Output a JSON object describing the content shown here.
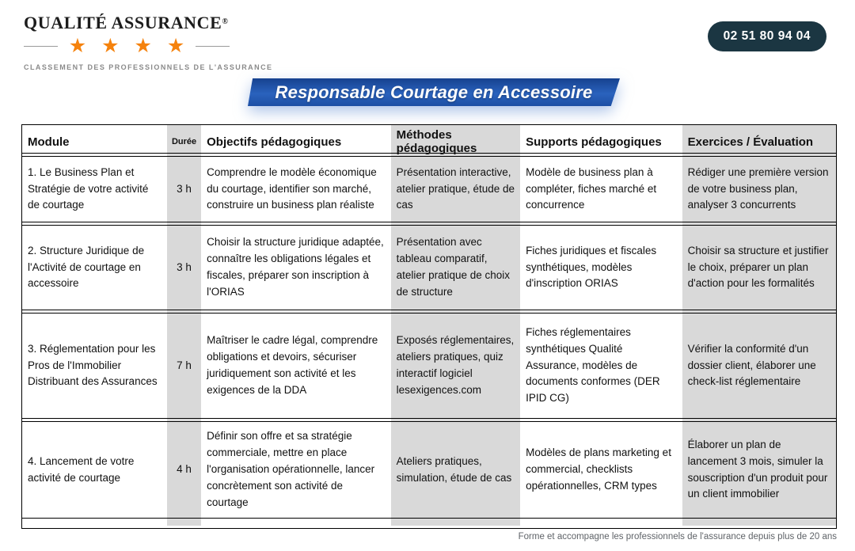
{
  "logo": {
    "title": "QUALITÉ ASSURANCE",
    "registered": "®",
    "stars": "★ ★ ★ ★",
    "tagline": "CLASSEMENT DES PROFESSIONNELS DE L'ASSURANCE"
  },
  "phone": "02 51 80 94 04",
  "banner": "Responsable Courtage en Accessoire",
  "table": {
    "headers": [
      "Module",
      "Durée",
      "Objectifs pédagogiques",
      "Méthodes pédagogiques",
      "Supports pédagogiques",
      "Exercices / Évaluation"
    ],
    "rows": [
      {
        "module": "1. Le Business Plan et Stratégie de votre activité de courtage",
        "duree": "3 h",
        "objectifs": "Comprendre le modèle économique du courtage, identifier son marché, construire un business plan réaliste",
        "methodes": "Présentation interactive, atelier pratique, étude de cas",
        "supports": "Modèle de business plan à compléter, fiches marché et concurrence",
        "exercices": "Rédiger une première version de votre business plan, analyser 3 concurrents"
      },
      {
        "module": "2. Structure Juridique de l'Activité de courtage en accessoire",
        "duree": "3 h",
        "objectifs": "Choisir la structure juridique adaptée, connaître les obligations légales et fiscales, préparer son inscription à l'ORIAS",
        "methodes": "Présentation avec tableau comparatif, atelier pratique de choix de structure",
        "supports": "Fiches juridiques et fiscales synthétiques, modèles d'inscription ORIAS",
        "exercices": "Choisir sa structure et justifier le choix, préparer un plan d'action pour les formalités"
      },
      {
        "module": "3. Réglementation pour les Pros de l'Immobilier Distribuant des Assurances",
        "duree": "7 h",
        "objectifs": "Maîtriser le cadre légal, comprendre obligations et devoirs, sécuriser juridiquement son activité et les exigences de la DDA",
        "methodes": "Exposés réglementaires, ateliers pratiques, quiz interactif logiciel lesexigences.com",
        "supports": "Fiches réglementaires synthétiques Qualité Assurance, modèles de documents conformes (DER IPID CG)",
        "exercices": "Vérifier la conformité d'un dossier client, élaborer une check-list réglementaire"
      },
      {
        "module": "4. Lancement de votre activité de courtage",
        "duree": "4 h",
        "objectifs": "Définir son offre et sa stratégie commerciale, mettre en place l'organisation opérationnelle, lancer concrètement son activité de courtage",
        "methodes": "Ateliers pratiques, simulation, étude de cas",
        "supports": "Modèles de plans marketing et commercial, checklists opérationnelles, CRM types",
        "exercices": "Élaborer un plan de lancement 3 mois, simuler la souscription d'un produit pour un client immobilier"
      }
    ]
  },
  "footer": "Forme et accompagne les professionnels de l'assurance depuis plus de 20 ans",
  "colors": {
    "banner_blue": "#2a62bd",
    "badge_dark": "#1b3642",
    "star_orange": "#f5820d",
    "column_shade": "#d9d9d9"
  }
}
